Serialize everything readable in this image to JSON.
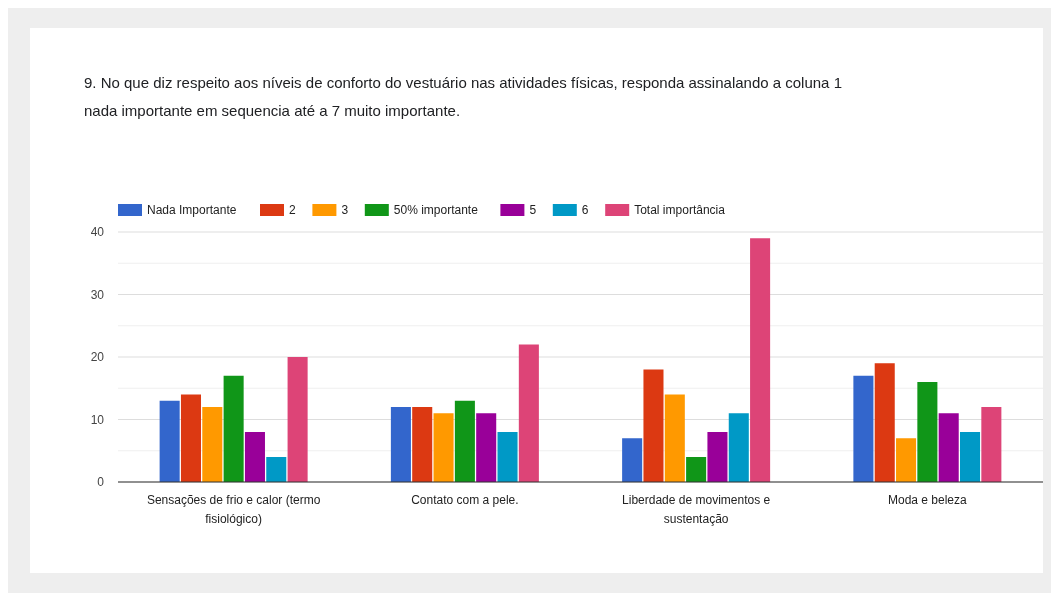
{
  "chart_data": {
    "type": "bar",
    "title": "9. No que diz respeito aos níveis de conforto do vestuário nas atividades físicas, responda  assinalando a coluna 1 nada importante em sequencia até a 7 muito importante.",
    "categories": [
      "Sensações de frio e calor (termo fisiológico)",
      "Contato com a pele.",
      "Liberdade de movimentos e sustentação",
      "Moda e beleza"
    ],
    "series": [
      {
        "name": "Nada Importante",
        "color": "#3366cc",
        "values": [
          13,
          12,
          7,
          17
        ]
      },
      {
        "name": "2",
        "color": "#dc3912",
        "values": [
          14,
          12,
          18,
          19
        ]
      },
      {
        "name": "3",
        "color": "#ff9900",
        "values": [
          12,
          11,
          14,
          7
        ]
      },
      {
        "name": "50% importante",
        "color": "#109618",
        "values": [
          17,
          13,
          4,
          16
        ]
      },
      {
        "name": "5",
        "color": "#990099",
        "values": [
          8,
          11,
          8,
          11
        ]
      },
      {
        "name": "6",
        "color": "#0099c6",
        "values": [
          4,
          8,
          11,
          8
        ]
      },
      {
        "name": "Total importância",
        "color": "#dd4477",
        "values": [
          20,
          22,
          39,
          12
        ]
      }
    ],
    "ylim": [
      0,
      40
    ],
    "yticks": [
      0,
      {
        "value": 5,
        "label": null
      },
      10,
      {
        "value": 15,
        "label": null
      },
      20,
      {
        "value": 25,
        "label": null
      },
      30,
      {
        "value": 35,
        "label": null
      },
      40
    ],
    "grid": "y",
    "legend": "top"
  }
}
